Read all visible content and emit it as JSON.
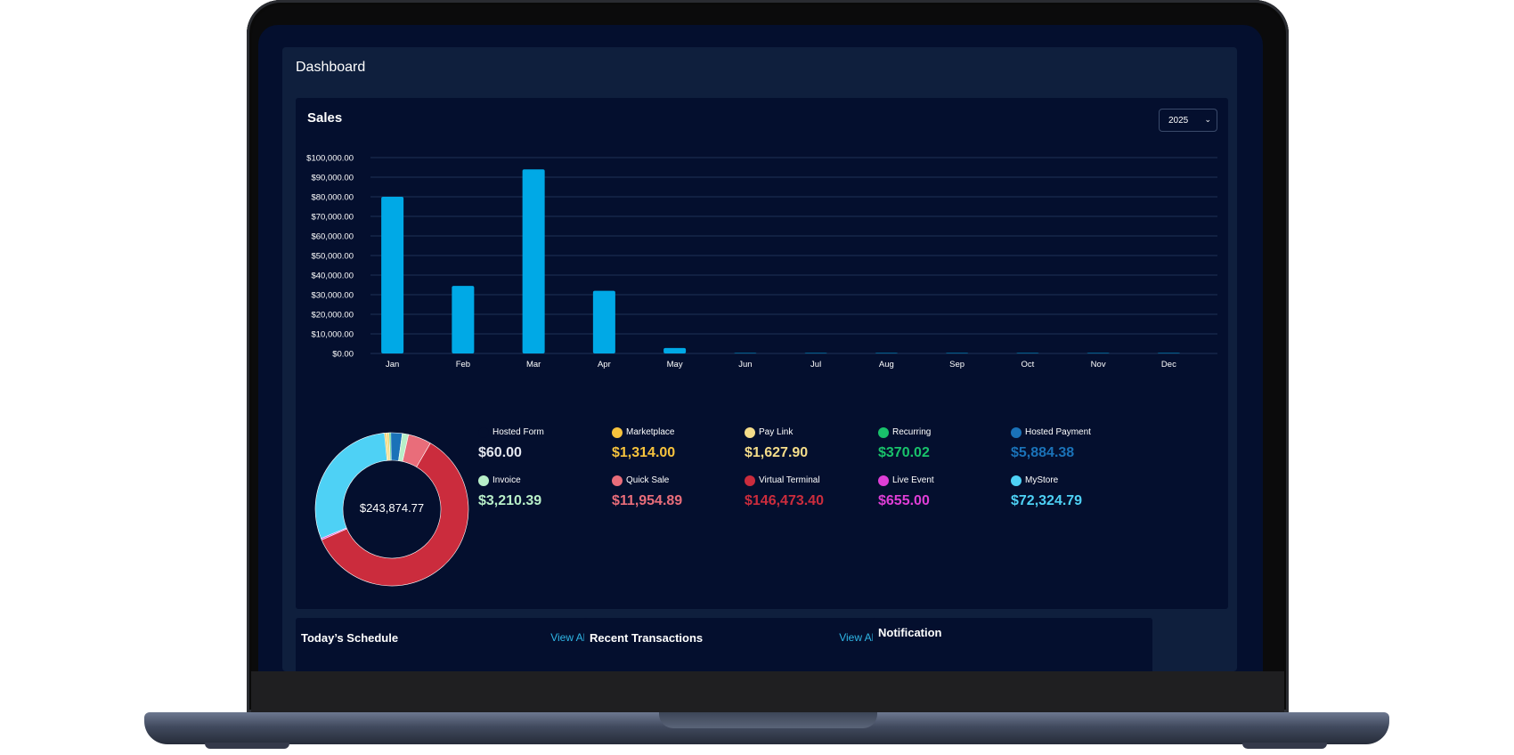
{
  "page": {
    "title": "Dashboard"
  },
  "sales": {
    "title": "Sales",
    "year_select": {
      "value": "2025"
    }
  },
  "chart_data": {
    "type": "bar",
    "categories": [
      "Jan",
      "Feb",
      "Mar",
      "Apr",
      "May",
      "Jun",
      "Jul",
      "Aug",
      "Sep",
      "Oct",
      "Nov",
      "Dec"
    ],
    "values": [
      80000,
      34500,
      94000,
      32000,
      2800,
      0,
      0,
      0,
      0,
      0,
      0,
      0
    ],
    "y_ticks": [
      "$0.00",
      "$10,000.00",
      "$20,000.00",
      "$30,000.00",
      "$40,000.00",
      "$50,000.00",
      "$60,000.00",
      "$70,000.00",
      "$80,000.00",
      "$90,000.00",
      "$100,000.00"
    ],
    "ylim": [
      0,
      100000
    ],
    "grid": true,
    "bar_color": "#00a9e6"
  },
  "donut": {
    "total": "$243,874.77",
    "segments": [
      {
        "label": "Hosted Form",
        "value": 60.0,
        "color": "#ffffff"
      },
      {
        "label": "Marketplace",
        "value": 1314.0,
        "color": "#f7c33d"
      },
      {
        "label": "Pay Link",
        "value": 1627.9,
        "color": "#f5dd8a"
      },
      {
        "label": "Recurring",
        "value": 370.02,
        "color": "#19c26b"
      },
      {
        "label": "Hosted Payment",
        "value": 5884.38,
        "color": "#1a72b8"
      },
      {
        "label": "Invoice",
        "value": 3210.39,
        "color": "#b8efc8"
      },
      {
        "label": "Quick Sale",
        "value": 11954.89,
        "color": "#e96d7a"
      },
      {
        "label": "Virtual Terminal",
        "value": 146473.4,
        "color": "#cb2c3d"
      },
      {
        "label": "Live Event",
        "value": 655.0,
        "color": "#df3ed6"
      },
      {
        "label": "MyStore",
        "value": 72324.79,
        "color": "#4ed1f5"
      }
    ]
  },
  "legend": [
    {
      "label": "Hosted Form",
      "value": "$60.00",
      "dot": "#040f2e",
      "color": "#e3e6ee"
    },
    {
      "label": "Marketplace",
      "value": "$1,314.00",
      "dot": "#f7c33d",
      "color": "#f7c33d"
    },
    {
      "label": "Pay Link",
      "value": "$1,627.90",
      "dot": "#f5dd8a",
      "color": "#f5dd8a"
    },
    {
      "label": "Recurring",
      "value": "$370.02",
      "dot": "#19c26b",
      "color": "#19c26b"
    },
    {
      "label": "Hosted Payment",
      "value": "$5,884.38",
      "dot": "#1a72b8",
      "color": "#1a72b8"
    },
    {
      "label": "Invoice",
      "value": "$3,210.39",
      "dot": "#b8efc8",
      "color": "#b8efc8"
    },
    {
      "label": "Quick Sale",
      "value": "$11,954.89",
      "dot": "#e96d7a",
      "color": "#e96d7a"
    },
    {
      "label": "Virtual Terminal",
      "value": "$146,473.40",
      "dot": "#cb2c3d",
      "color": "#cb2c3d"
    },
    {
      "label": "Live Event",
      "value": "$655.00",
      "dot": "#df3ed6",
      "color": "#df3ed6"
    },
    {
      "label": "MyStore",
      "value": "$72,324.79",
      "dot": "#4ed1f5",
      "color": "#4ed1f5"
    }
  ],
  "schedule": {
    "title": "Today’s Schedule",
    "view_all": "View All"
  },
  "transactions": {
    "title": "Recent Transactions",
    "view_all": "View All"
  },
  "notification": {
    "title": "Notification"
  }
}
